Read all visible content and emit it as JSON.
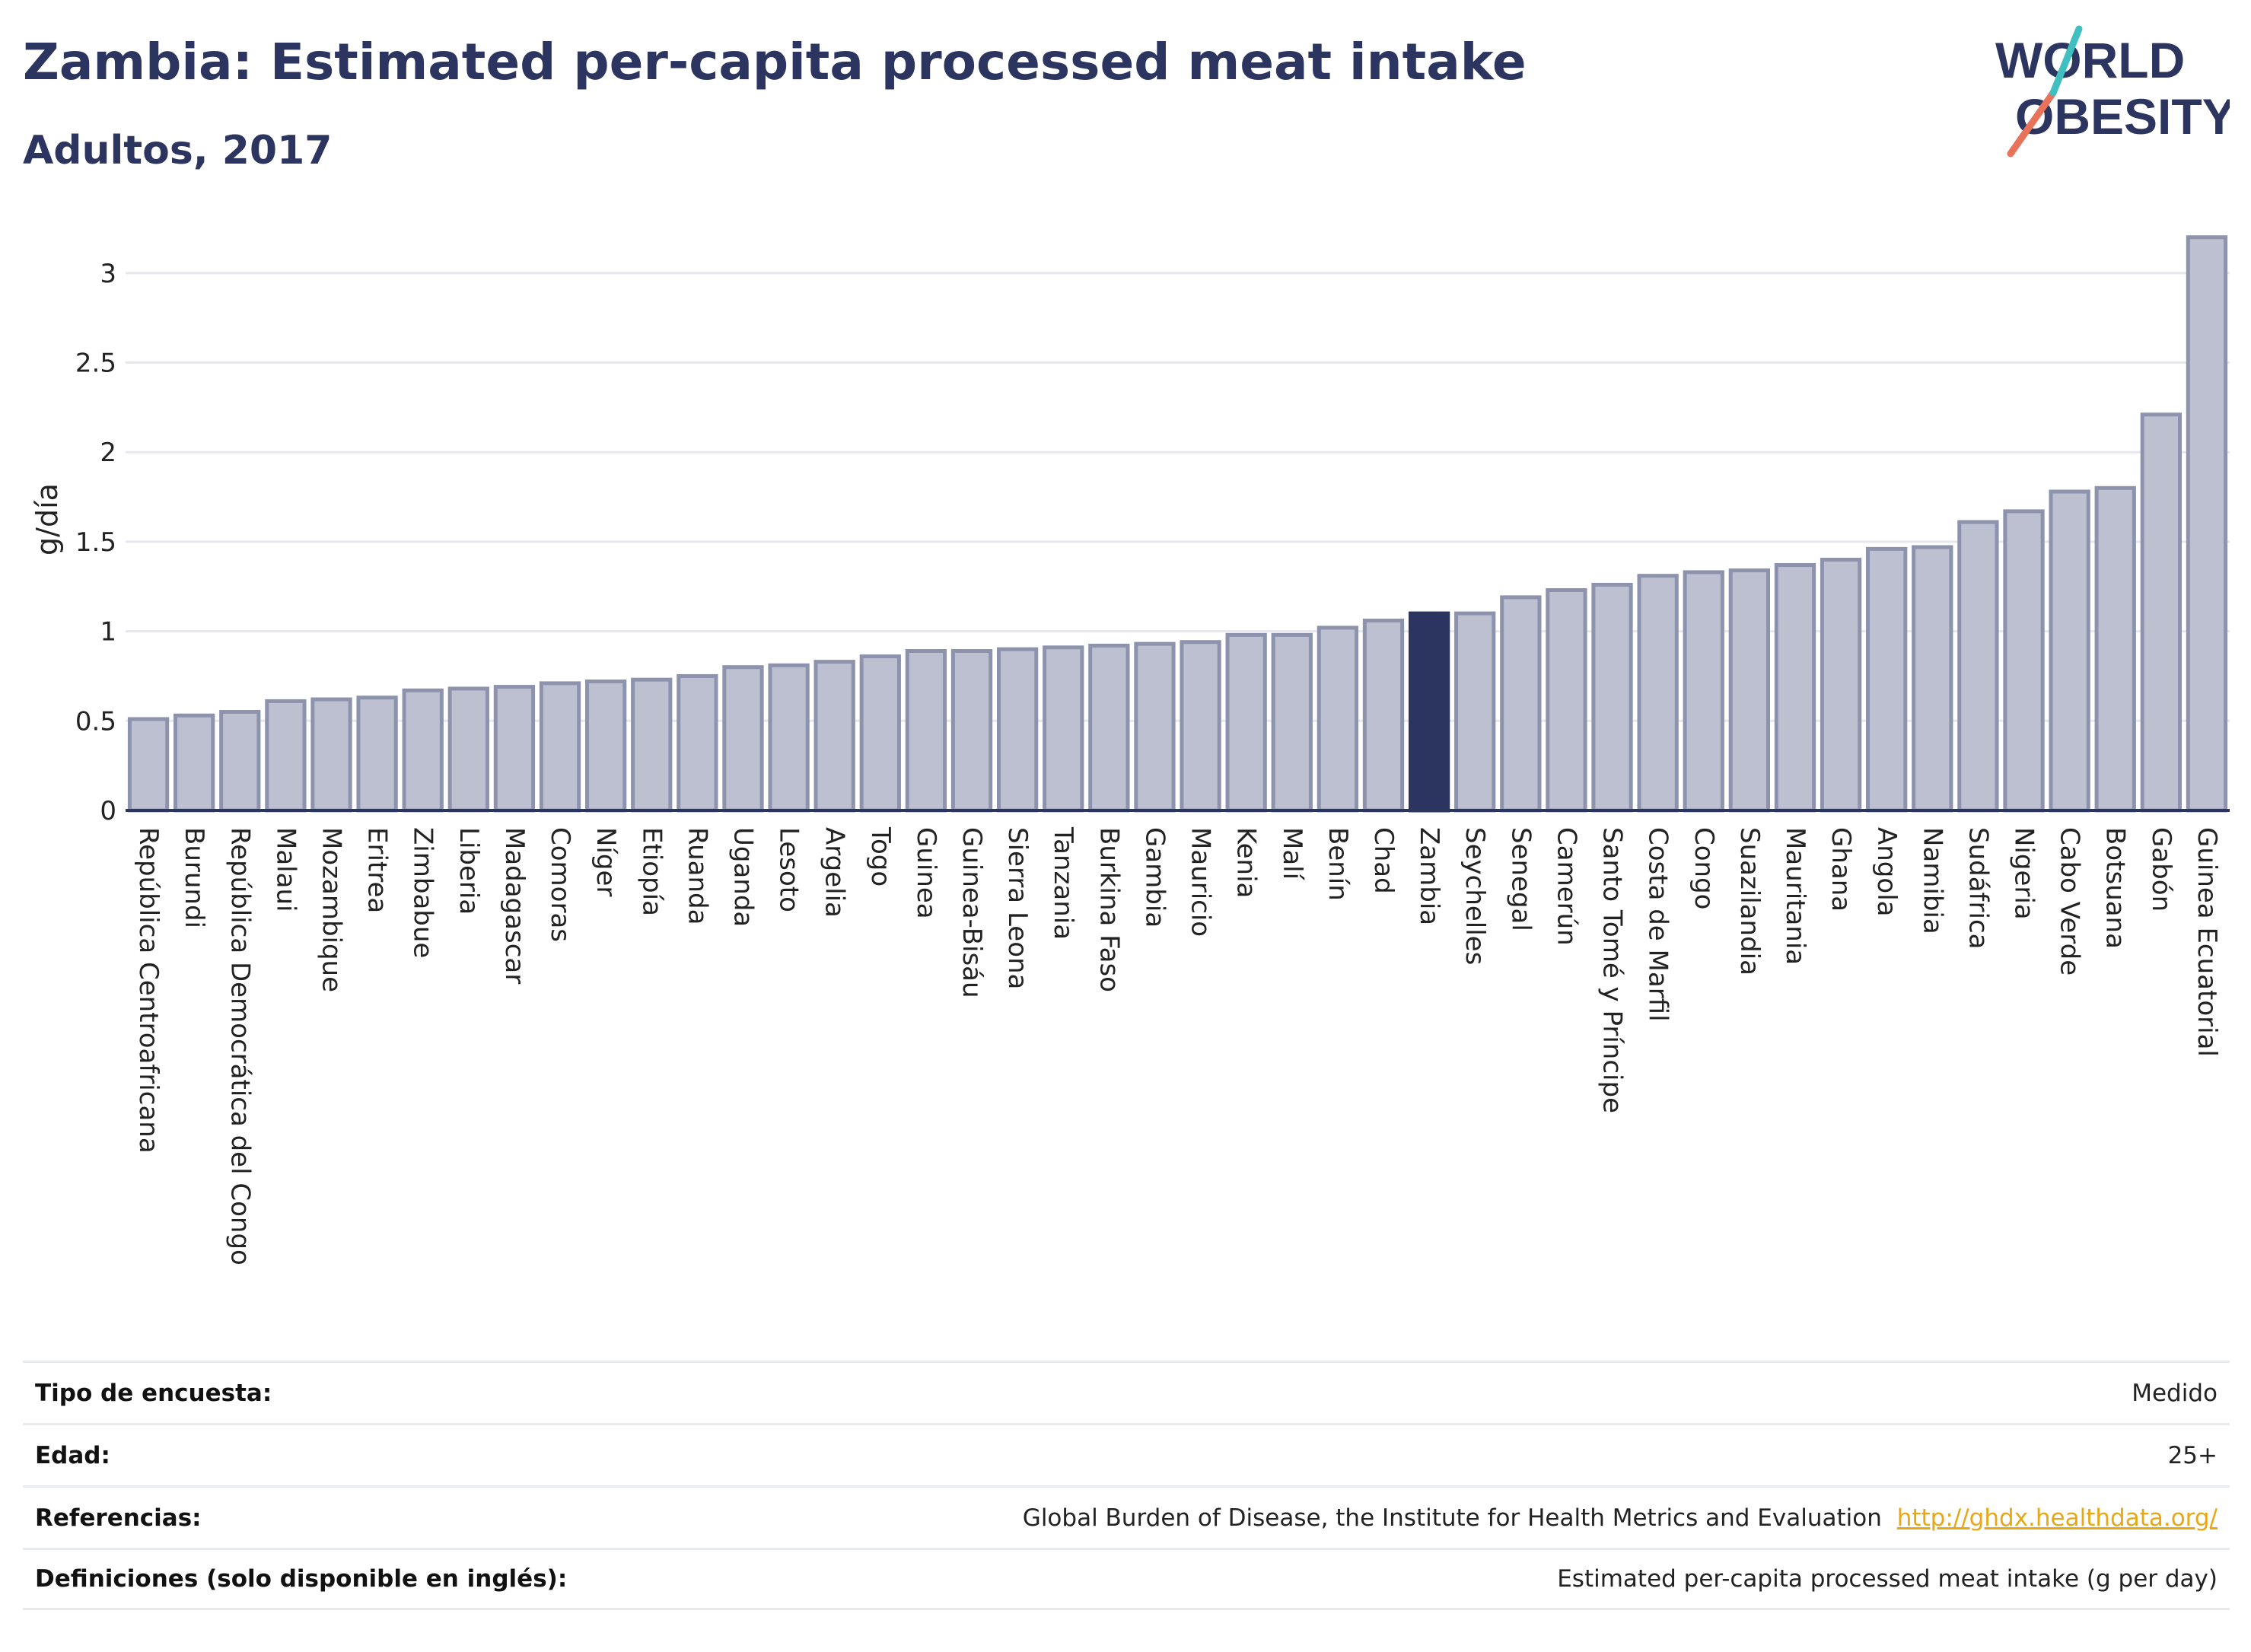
{
  "header": {
    "title": "Zambia: Estimated per-capita processed meat intake",
    "subtitle": "Adultos, 2017"
  },
  "logo": {
    "line1": "WORLD",
    "line2": "OBESITY"
  },
  "colors": {
    "bar": "#bcc0d1",
    "bar_stroke": "#8d93ad",
    "highlight": "#2b3560",
    "grid": "#e6e8ee",
    "title": "#2b3560"
  },
  "chart_data": {
    "type": "bar",
    "ylabel": "g/día",
    "xlabel": "",
    "ylim": [
      0,
      3.25
    ],
    "yticks": [
      0,
      0.5,
      1,
      1.5,
      2,
      2.5,
      3
    ],
    "ytick_labels": [
      "0",
      "0.5",
      "1",
      "1.5",
      "2",
      "2.5",
      "3"
    ],
    "highlight": "Zambia",
    "categories": [
      "República Centroafricana",
      "Burundi",
      "República Democrática del Congo",
      "Malaui",
      "Mozambique",
      "Eritrea",
      "Zimbabue",
      "Liberia",
      "Madagascar",
      "Comoras",
      "Níger",
      "Etiopía",
      "Ruanda",
      "Uganda",
      "Lesoto",
      "Argelia",
      "Togo",
      "Guinea",
      "Guinea-Bisáu",
      "Sierra Leona",
      "Tanzania",
      "Burkina Faso",
      "Gambia",
      "Mauricio",
      "Kenia",
      "Malí",
      "Benín",
      "Chad",
      "Zambia",
      "Seychelles",
      "Senegal",
      "Camerún",
      "Santo Tomé y Príncipe",
      "Costa de Marfil",
      "Congo",
      "Suazilandia",
      "Mauritania",
      "Ghana",
      "Angola",
      "Namibia",
      "Sudáfrica",
      "Nigeria",
      "Cabo Verde",
      "Botsuana",
      "Gabón",
      "Guinea Ecuatorial"
    ],
    "values": [
      0.51,
      0.53,
      0.55,
      0.61,
      0.62,
      0.63,
      0.67,
      0.68,
      0.69,
      0.71,
      0.72,
      0.73,
      0.75,
      0.8,
      0.81,
      0.83,
      0.86,
      0.89,
      0.89,
      0.9,
      0.91,
      0.92,
      0.93,
      0.94,
      0.98,
      0.98,
      1.02,
      1.06,
      1.1,
      1.1,
      1.19,
      1.23,
      1.26,
      1.31,
      1.33,
      1.34,
      1.37,
      1.4,
      1.46,
      1.47,
      1.61,
      1.67,
      1.78,
      1.8,
      2.21,
      3.2
    ]
  },
  "info": {
    "rows": [
      {
        "label": "Tipo de encuesta:",
        "value": "Medido"
      },
      {
        "label": "Edad:",
        "value": "25+"
      },
      {
        "label": "Referencias:",
        "value": "Global Burden of Disease, the Institute for Health Metrics and Evaluation",
        "link": "http://ghdx.healthdata.org/"
      },
      {
        "label": "Definiciones (solo disponible en inglés):",
        "value": "Estimated per-capita processed meat intake (g per day)"
      }
    ]
  }
}
